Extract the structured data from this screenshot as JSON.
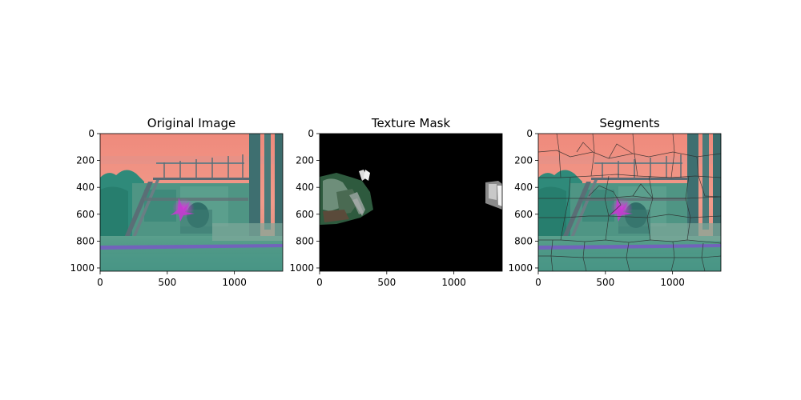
{
  "chart_data": [
    {
      "type": "image",
      "title": "Original Image",
      "xlim": [
        0,
        1360
      ],
      "ylim": [
        1024,
        0
      ],
      "xticks": [
        0,
        500,
        1000
      ],
      "yticks": [
        0,
        200,
        400,
        600,
        800,
        1000
      ]
    },
    {
      "type": "image",
      "title": "Texture Mask",
      "xlim": [
        0,
        1360
      ],
      "ylim": [
        1024,
        0
      ],
      "xticks": [
        0,
        500,
        1000
      ],
      "yticks": [
        0,
        200,
        400,
        600,
        800,
        1000
      ]
    },
    {
      "type": "image",
      "title": "Segments",
      "xlim": [
        0,
        1360
      ],
      "ylim": [
        1024,
        0
      ],
      "xticks": [
        0,
        500,
        1000
      ],
      "yticks": [
        0,
        200,
        400,
        600,
        800,
        1000
      ]
    }
  ],
  "colors": {
    "sky": "#ee8679",
    "sky_light": "#f59888",
    "foliage": "#2f8a7a",
    "ground": "#4c9b88",
    "structure": "#5a6a73",
    "magenta_spot": "#c63ad1",
    "purple_band": "#7a55c8",
    "mask_bg": "#000000",
    "segment_line": "#2b2b2b"
  }
}
